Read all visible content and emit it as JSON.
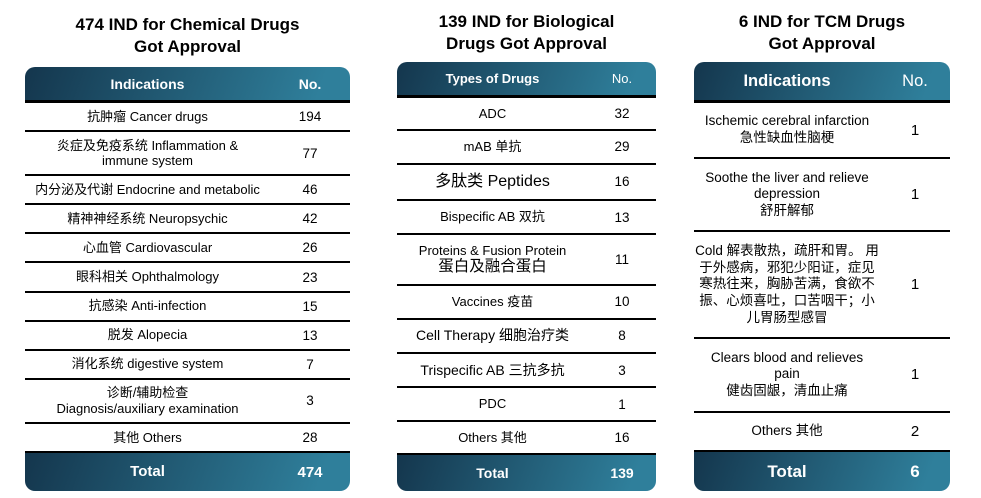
{
  "colors": {
    "background": "#ffffff",
    "bar_gradient_start": "#14364d",
    "bar_gradient_end": "#2f7f9b",
    "separator": "#000000",
    "bar_text": "#ffffff",
    "body_text": "#000000"
  },
  "tables": [
    {
      "id": "chemical",
      "title": "474 IND for Chemical Drugs\nGot Approval",
      "columns": {
        "label": "Indications",
        "no": "No."
      },
      "rows": [
        {
          "label": "抗肿瘤 Cancer drugs",
          "no": "194"
        },
        {
          "label": "炎症及免疫系统 Inflammation &\nimmune system",
          "no": "77"
        },
        {
          "label": "内分泌及代谢 Endocrine and metabolic",
          "no": "46"
        },
        {
          "label": "精神神经系统 Neuropsychic",
          "no": "42"
        },
        {
          "label": "心血管 Cardiovascular",
          "no": "26"
        },
        {
          "label": "眼科相关 Ophthalmology",
          "no": "23"
        },
        {
          "label": "抗感染 Anti-infection",
          "no": "15"
        },
        {
          "label": "脱发 Alopecia",
          "no": "13"
        },
        {
          "label": "消化系统 digestive system",
          "no": "7"
        },
        {
          "label": "诊断/辅助检查\nDiagnosis/auxiliary examination",
          "no": "3"
        },
        {
          "label": "其他 Others",
          "no": "28"
        }
      ],
      "total": {
        "label": "Total",
        "no": "474"
      }
    },
    {
      "id": "biological",
      "title": "139 IND for Biological\nDrugs Got Approval",
      "columns": {
        "label": "Types of Drugs",
        "no": "No."
      },
      "rows": [
        {
          "label": "ADC",
          "no": "32"
        },
        {
          "label": "mAB 单抗",
          "no": "29"
        },
        {
          "label": "多肽类 Peptides",
          "no": "16",
          "size": "lg"
        },
        {
          "label": "Bispecific AB 双抗",
          "no": "13"
        },
        {
          "label": "Proteins & Fusion Protein",
          "label2": "蛋白及融合蛋白",
          "label2_large": true,
          "no": "11"
        },
        {
          "label": "Vaccines 疫苗",
          "no": "10"
        },
        {
          "label": "Cell Therapy 细胞治疗类",
          "no": "8",
          "size": "md"
        },
        {
          "label": "Trispecific AB 三抗多抗",
          "no": "3",
          "size": "md"
        },
        {
          "label": "PDC",
          "no": "1"
        },
        {
          "label": "Others 其他",
          "no": "16"
        }
      ],
      "total": {
        "label": "Total",
        "no": "139"
      }
    },
    {
      "id": "tcm",
      "title": "6 IND for TCM Drugs\nGot Approval",
      "columns": {
        "label": "Indications",
        "no": "No."
      },
      "rows": [
        {
          "label": "Ischemic cerebral infarction\n急性缺血性脑梗",
          "no": "1"
        },
        {
          "label": "Soothe the liver and relieve\ndepression\n舒肝解郁",
          "no": "1"
        },
        {
          "label": "Cold 解表散热，疏肝和胃。 用于外感病，邪犯少阳证，症见寒热往来，胸胁苦满，食欲不振、心烦喜吐，口苦咽干；小儿胃肠型感冒",
          "no": "1"
        },
        {
          "label": "Clears blood and relieves\npain\n健齿固龈，清血止痛",
          "no": "1"
        },
        {
          "label": "Others 其他",
          "no": "2"
        }
      ],
      "total": {
        "label": "Total",
        "no": "6"
      }
    }
  ]
}
